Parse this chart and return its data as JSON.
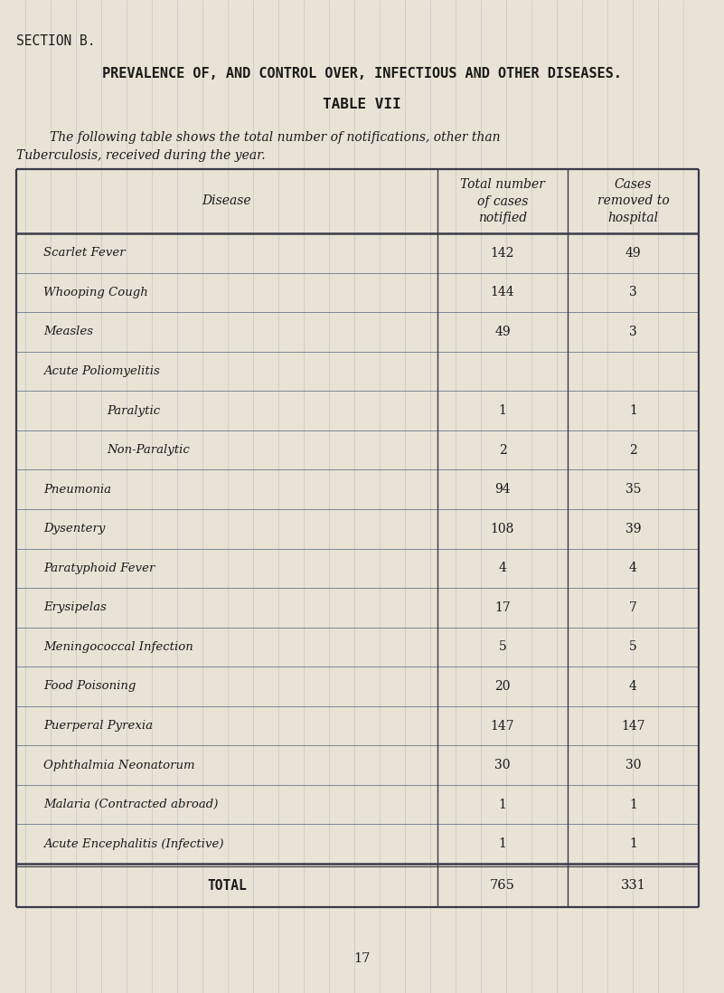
{
  "page_bg": "#e8e3d5",
  "section_label": "SECTION B.",
  "title1": "PREVALENCE OF, AND CONTROL OVER, INFECTIOUS AND OTHER DISEASES.",
  "title2": "TABLE VII",
  "body_line1": "The following table shows the total number of notifications, other than",
  "body_line2": "Tuberculosis, received during the year.",
  "col_headers": [
    "Disease",
    "Total number\nof cases\nnotified",
    "Cases\nremoved to\nhospital"
  ],
  "rows": [
    {
      "disease": "Scarlet Fever",
      "indent": false,
      "total": "142",
      "removed": "49"
    },
    {
      "disease": "Whooping Cough",
      "indent": false,
      "total": "144",
      "removed": "3"
    },
    {
      "disease": "Measles",
      "indent": false,
      "total": "49",
      "removed": "3"
    },
    {
      "disease": "Acute Poliomyelitis",
      "indent": false,
      "total": "",
      "removed": ""
    },
    {
      "disease": "Paralytic",
      "indent": true,
      "total": "1",
      "removed": "1"
    },
    {
      "disease": "Non-Paralytic",
      "indent": true,
      "total": "2",
      "removed": "2"
    },
    {
      "disease": "Pneumonia",
      "indent": false,
      "total": "94",
      "removed": "35"
    },
    {
      "disease": "Dysentery",
      "indent": false,
      "total": "108",
      "removed": "39"
    },
    {
      "disease": "Paratyphoid Fever",
      "indent": false,
      "total": "4",
      "removed": "4"
    },
    {
      "disease": "Erysipelas",
      "indent": false,
      "total": "17",
      "removed": "7"
    },
    {
      "disease": "Meningococcal Infection",
      "indent": false,
      "total": "5",
      "removed": "5"
    },
    {
      "disease": "Food Poisoning",
      "indent": false,
      "total": "20",
      "removed": "4"
    },
    {
      "disease": "Puerperal Pyrexia",
      "indent": false,
      "total": "147",
      "removed": "147"
    },
    {
      "disease": "Ophthalmia Neonatorum",
      "indent": false,
      "total": "30",
      "removed": "30"
    },
    {
      "disease": "Malaria (Contracted abroad)",
      "indent": false,
      "total": "1",
      "removed": "1"
    },
    {
      "disease": "Acute Encephalitis (Infective)",
      "indent": false,
      "total": "1",
      "removed": "1"
    }
  ],
  "total_row": {
    "disease": "TOTAL",
    "total": "765",
    "removed": "331"
  },
  "footer": "17",
  "text_color": "#1a1a1a",
  "table_border_color": "#3a3a4a",
  "grid_line_color": "#a8b8cc",
  "thin_line_color": "#6a7a8a"
}
